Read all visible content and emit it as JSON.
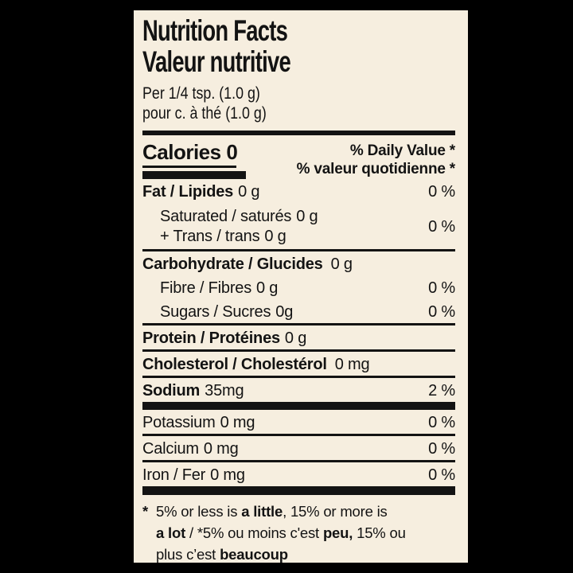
{
  "page": {
    "background": "#000000",
    "label_background": "#F6EEDF",
    "ink": "#131313"
  },
  "header": {
    "title_en": "Nutrition Facts",
    "title_fr": "Valeur nutritive",
    "serving_en": "Per 1/4 tsp. (1.0 g)",
    "serving_fr": "pour c. à thé (1.0 g)"
  },
  "calories": {
    "label": "Calories",
    "value": "0"
  },
  "daily_value": {
    "en": "% Daily Value *",
    "fr": "% valeur quotidienne *"
  },
  "nutrients": {
    "fat": {
      "name": "Fat / Lipides",
      "amount": "0 g",
      "dv": "0 %"
    },
    "saturated": {
      "name": "Saturated / saturés",
      "amount": "0 g"
    },
    "trans": {
      "name": "+ Trans / trans",
      "amount": "0 g"
    },
    "saturated_trans_dv": "0 %",
    "carbohydrate": {
      "name": "Carbohydrate / Glucides",
      "amount": "0 g"
    },
    "fibre": {
      "name": "Fibre / Fibres",
      "amount": "0 g",
      "dv": "0 %"
    },
    "sugars": {
      "name": "Sugars / Sucres",
      "amount": "0g",
      "dv": "0 %"
    },
    "protein": {
      "name": "Protein / Protéines",
      "amount": "0 g"
    },
    "cholesterol": {
      "name": "Cholesterol / Cholestérol",
      "amount": "0 mg"
    },
    "sodium": {
      "name": "Sodium",
      "amount": "35mg",
      "dv": "2 %"
    },
    "potassium": {
      "name": "Potassium",
      "amount": "0 mg",
      "dv": "0 %"
    },
    "calcium": {
      "name": "Calcium",
      "amount": "0 mg",
      "dv": "0 %"
    },
    "iron": {
      "name": "Iron / Fer",
      "amount": "0 mg",
      "dv": "0 %"
    }
  },
  "footnote": {
    "star": "*",
    "line1_regular": "5% or less is ",
    "line1_bold": "a little",
    "line1_tail": ", 15% or more is",
    "line2_bold_start": "a lot",
    "line2_regular": " / *5% ou moins c'est ",
    "line2_bold": "peu,",
    "line2_tail": " 15% ou",
    "line3_regular": "plus c’est ",
    "line3_bold": "beaucoup"
  }
}
